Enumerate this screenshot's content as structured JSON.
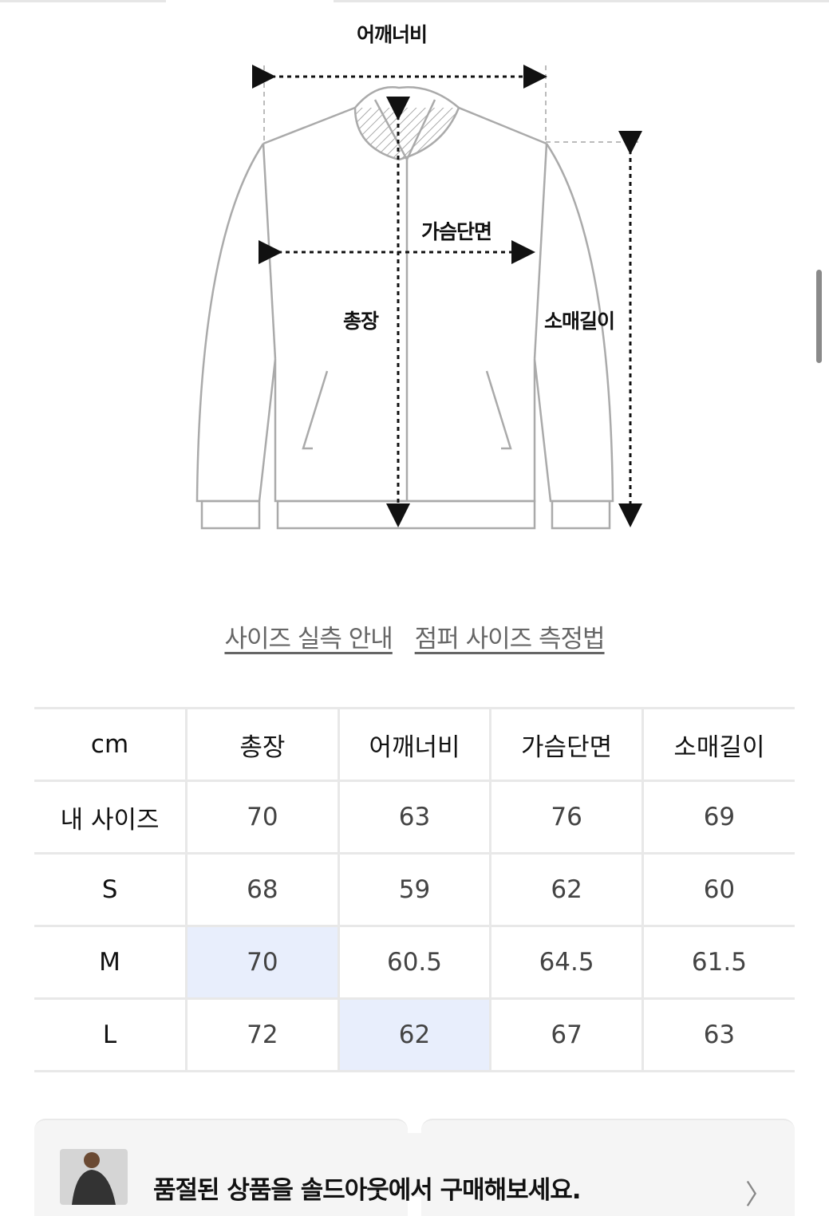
{
  "diagram": {
    "labels": {
      "shoulder": "어깨너비",
      "chest": "가슴단면",
      "length": "총장",
      "sleeve": "소매길이"
    }
  },
  "links": [
    "사이즈 실측 안내",
    "점퍼 사이즈 측정법"
  ],
  "size_table": {
    "headers": [
      "cm",
      "총장",
      "어깨너비",
      "가슴단면",
      "소매길이"
    ],
    "rows": [
      [
        "내 사이즈",
        "70",
        "63",
        "76",
        "69"
      ],
      [
        "S",
        "68",
        "59",
        "62",
        "60"
      ],
      [
        "M",
        "70",
        "60.5",
        "64.5",
        "61.5"
      ],
      [
        "L",
        "72",
        "62",
        "67",
        "63"
      ]
    ],
    "highlight_color": "#e8eefc"
  },
  "banner": {
    "text": "품절된 상품을 솔드아웃에서 구매해보세요.",
    "chevron": "chevron-right-icon"
  }
}
